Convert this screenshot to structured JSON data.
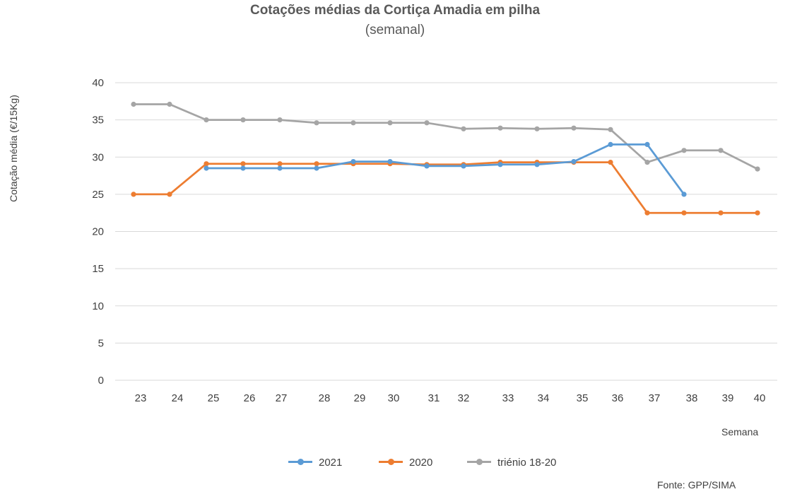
{
  "chart_data": {
    "type": "line",
    "title": "Cotações médias da Cortiça Amadia em pilha",
    "subtitle": "(semanal)",
    "ylabel": "Cotação média (€/15Kg)",
    "xlabel": "Semana",
    "source": "Fonte: GPP/SIMA",
    "categories": [
      "23",
      "24",
      "25",
      "26",
      "27",
      "28",
      "29",
      "30",
      "31",
      "32",
      "33",
      "34",
      "35",
      "36",
      "37",
      "38",
      "39",
      "40"
    ],
    "ylim": [
      0,
      40
    ],
    "yticks": [
      0,
      5,
      10,
      15,
      20,
      25,
      30,
      35,
      40
    ],
    "grid": true,
    "legend_position": "bottom",
    "series": [
      {
        "name": "2021",
        "color": "#5B9BD5",
        "values": [
          null,
          null,
          28.5,
          28.5,
          28.5,
          28.5,
          29.4,
          29.4,
          28.8,
          28.8,
          29.0,
          29.0,
          29.4,
          31.7,
          31.7,
          25.0,
          null,
          null
        ]
      },
      {
        "name": "2020",
        "color": "#ED7D31",
        "values": [
          25.0,
          25.0,
          29.1,
          29.1,
          29.1,
          29.1,
          29.1,
          29.1,
          29.0,
          29.0,
          29.3,
          29.3,
          29.3,
          29.3,
          22.5,
          22.5,
          22.5,
          22.5
        ]
      },
      {
        "name": "triénio 18-20",
        "color": "#A5A5A5",
        "values": [
          37.1,
          37.1,
          35.0,
          35.0,
          35.0,
          34.6,
          34.6,
          34.6,
          34.6,
          33.8,
          33.9,
          33.8,
          33.9,
          33.7,
          29.3,
          30.9,
          30.9,
          28.4
        ]
      }
    ]
  }
}
